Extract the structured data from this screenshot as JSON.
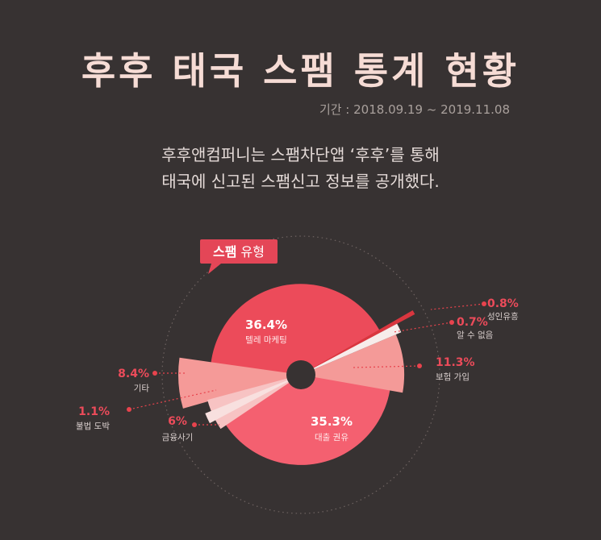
{
  "title": "후후 태국 스팸 통계 현황",
  "period": "기간 : 2018.09.19 ~ 2019.11.08",
  "intro": {
    "line1": "후후앤컴퍼니는 스팸차단앱 ‘후후’를 통해",
    "line2": "태국에 신고된 스팸신고 정보를 공개했다."
  },
  "badge": {
    "bold": "스팸",
    "rest": " 유형"
  },
  "colors": {
    "background": "#373232",
    "accent": "#e8434d",
    "badge": "#e44657"
  },
  "chart_data": {
    "type": "pie",
    "title": "스팸 유형",
    "unit": "%",
    "note": "radial (polar area) pie: slice angle and radius both scale with share",
    "slices": [
      {
        "label": "텔레 마케팅",
        "value": 36.4,
        "value_label": "36.4%",
        "color": "#ec4b5a"
      },
      {
        "label": "대출 권유",
        "value": 35.3,
        "value_label": "35.3%",
        "color": "#f46070"
      },
      {
        "label": "보험 가입",
        "value": 11.3,
        "value_label": "11.3%",
        "color": "#f49a98"
      },
      {
        "label": "기타",
        "value": 8.4,
        "value_label": "8.4%",
        "color": "#f59a98"
      },
      {
        "label": "금융사기",
        "value": 6.0,
        "value_label": "6%",
        "color": "#f7c3c3"
      },
      {
        "label": "성인유흥",
        "value": 0.8,
        "value_label": "0.8%",
        "color": "#d9363f"
      },
      {
        "label": "알 수 없음",
        "value": 0.7,
        "value_label": "0.7%",
        "color": "#f7eceb"
      },
      {
        "label": "불법 도박",
        "value": 1.1,
        "value_label": "1.1%",
        "color": "#f8e0df"
      }
    ]
  }
}
